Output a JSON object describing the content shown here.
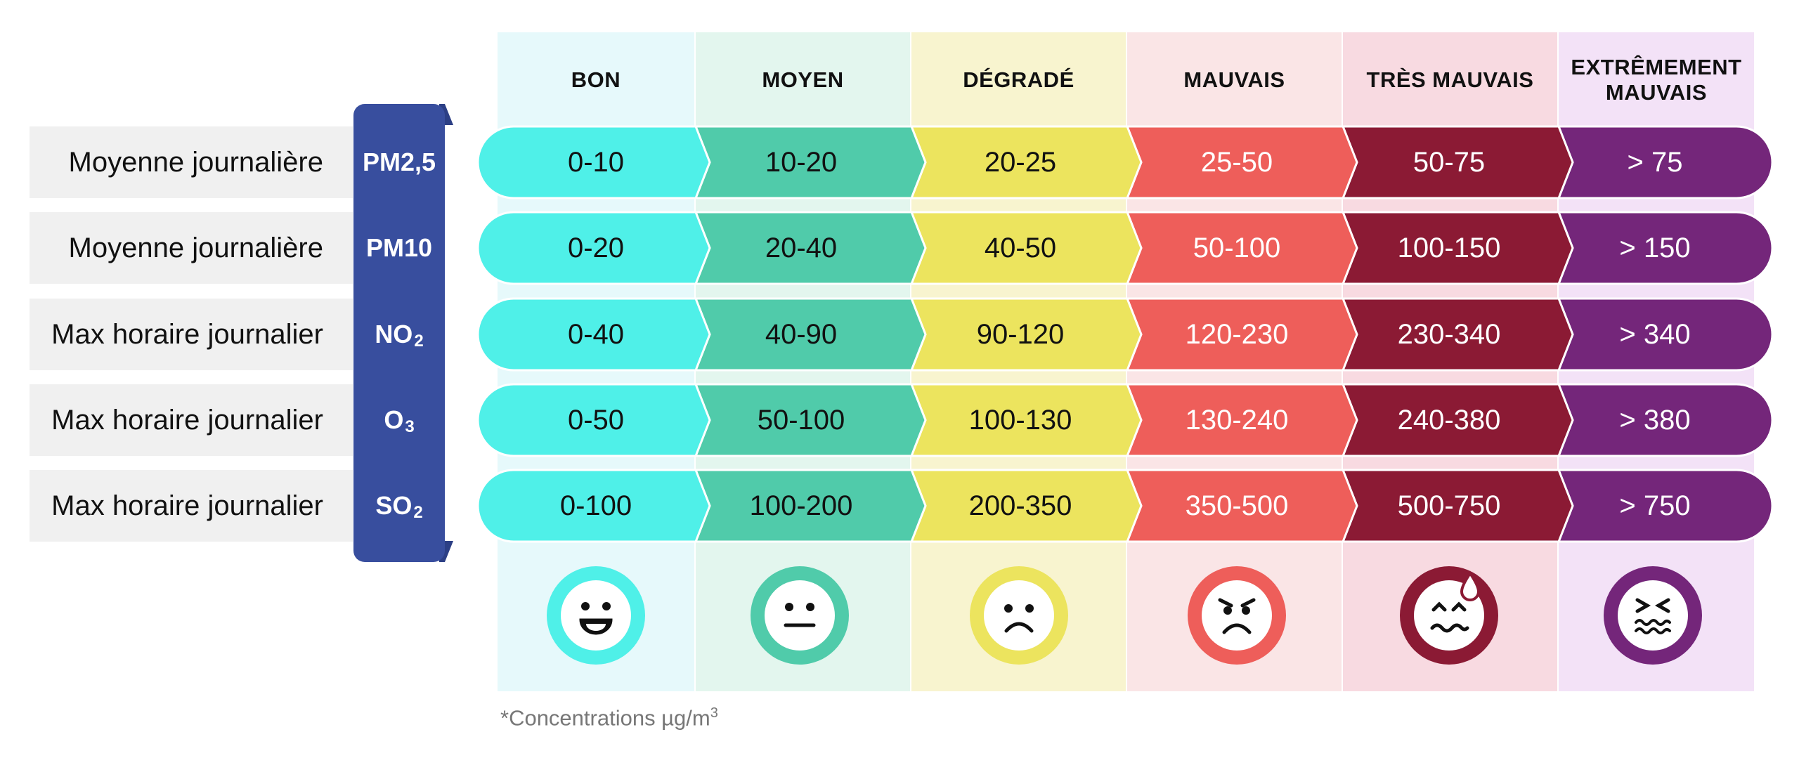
{
  "levels": [
    {
      "label": "BON",
      "color": "#4ff0e8",
      "bg": "#e6f9fb",
      "text_color": "#111111"
    },
    {
      "label": "MOYEN",
      "color": "#50cbaa",
      "bg": "#e3f6ee",
      "text_color": "#111111"
    },
    {
      "label": "DÉGRADÉ",
      "color": "#ece45e",
      "bg": "#f8f4cf",
      "text_color": "#111111"
    },
    {
      "label": "MAUVAIS",
      "color": "#ee5e5a",
      "bg": "#fae5e6",
      "text_color": "#ffffff"
    },
    {
      "label": "TRÈS MAUVAIS",
      "color": "#8b1a34",
      "bg": "#f8dae1",
      "text_color": "#ffffff"
    },
    {
      "label_line1": "EXTRÊMEMENT",
      "label_line2": "MAUVAIS",
      "color": "#74267a",
      "bg": "#f3e2f7",
      "text_color": "#ffffff"
    }
  ],
  "rows": [
    {
      "label": "Moyenne journalière",
      "pollutant": "PM2,5",
      "sub": "",
      "values": [
        "0-10",
        "10-20",
        "20-25",
        "25-50",
        "50-75",
        "> 75"
      ]
    },
    {
      "label": "Moyenne journalière",
      "pollutant": "PM10",
      "sub": "",
      "values": [
        "0-20",
        "20-40",
        "40-50",
        "50-100",
        "100-150",
        "> 150"
      ]
    },
    {
      "label": "Max horaire journalier",
      "pollutant": "NO",
      "sub": "2",
      "values": [
        "0-40",
        "40-90",
        "90-120",
        "120-230",
        "230-340",
        "> 340"
      ]
    },
    {
      "label": "Max horaire journalier",
      "pollutant": "O",
      "sub": "3",
      "values": [
        "0-50",
        "50-100",
        "100-130",
        "130-240",
        "240-380",
        "> 380"
      ]
    },
    {
      "label": "Max horaire journalier",
      "pollutant": "SO",
      "sub": "2",
      "values": [
        "0-100",
        "100-200",
        "200-350",
        "350-500",
        "500-750",
        "> 750"
      ]
    }
  ],
  "faces": [
    "smiling-face-icon",
    "neutral-face-icon",
    "frowning-face-icon",
    "angry-face-icon",
    "anxious-sweat-face-icon",
    "distressed-face-icon"
  ],
  "footnote": {
    "text": "*Concentrations µg/m",
    "sup": "3"
  }
}
